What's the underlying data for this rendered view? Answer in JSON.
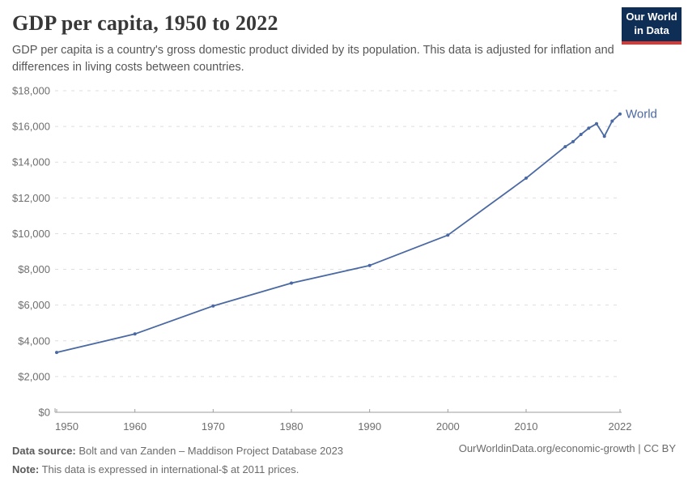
{
  "header": {
    "title": "GDP per capita, 1950 to 2022",
    "subtitle": "GDP per capita is a country's gross domestic product divided by its population. This data is adjusted for inflation and differences in living costs between countries.",
    "logo": {
      "line1": "Our World",
      "line2": "in Data",
      "bg_color": "#0f2e55",
      "bar_color": "#d73a34"
    }
  },
  "chart_data": {
    "type": "line",
    "title": "GDP per capita, 1950 to 2022",
    "xlabel": "",
    "ylabel": "",
    "xlim": [
      1950,
      2022
    ],
    "ylim": [
      0,
      18000
    ],
    "grid": "horizontal-dashed",
    "legend_position": "end-of-line",
    "x_ticks": [
      1950,
      1960,
      1970,
      1980,
      1990,
      2000,
      2010,
      2022
    ],
    "y_ticks": [
      0,
      2000,
      4000,
      6000,
      8000,
      10000,
      12000,
      14000,
      16000,
      18000
    ],
    "y_tick_labels": [
      "$0",
      "$2,000",
      "$4,000",
      "$6,000",
      "$8,000",
      "$10,000",
      "$12,000",
      "$14,000",
      "$16,000",
      "$18,000"
    ],
    "x": [
      1950,
      1960,
      1970,
      1980,
      1990,
      2000,
      2010,
      2015,
      2016,
      2017,
      2018,
      2019,
      2020,
      2021,
      2022
    ],
    "series": [
      {
        "name": "World",
        "color": "#4a69a3",
        "values": [
          3351,
          4386,
          5952,
          7233,
          8222,
          9914,
          13108,
          14868,
          15150,
          15550,
          15900,
          16150,
          15450,
          16300,
          16700
        ]
      }
    ],
    "unit": "international-$ at 2011 prices"
  },
  "footer": {
    "source_label": "Data source:",
    "source_text": " Bolt and van Zanden – Maddison Project Database 2023",
    "note_label": "Note:",
    "note_text": " This data is expressed in international-$ at 2011 prices.",
    "attribution": "OurWorldinData.org/economic-growth | CC BY"
  },
  "colors": {
    "line": "#4a69a3",
    "gridline": "#dedede",
    "axis": "#9e9e9e",
    "tick_text": "#6e6e6e",
    "title_text": "#383838",
    "subtitle_text": "#575757"
  }
}
